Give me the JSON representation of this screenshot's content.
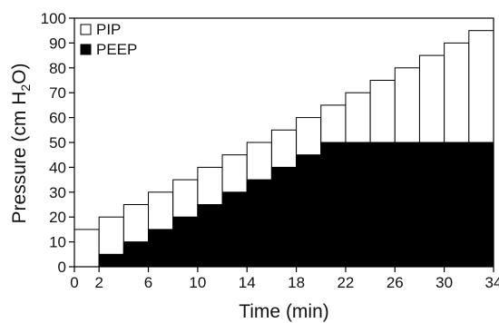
{
  "chart_data": {
    "type": "bar",
    "xlabel": "Time (min)",
    "ylabel_parts": [
      "Pressure (cm H",
      "2",
      "O)"
    ],
    "xlim": [
      0,
      34
    ],
    "ylim": [
      0,
      100
    ],
    "x_ticks": [
      0,
      2,
      6,
      10,
      14,
      18,
      22,
      26,
      30,
      34
    ],
    "y_ticks": [
      0,
      10,
      20,
      30,
      40,
      50,
      60,
      70,
      80,
      90,
      100
    ],
    "step_width": 2,
    "steps": [
      {
        "x": 0,
        "PIP": 15,
        "PEEP": 0
      },
      {
        "x": 2,
        "PIP": 20,
        "PEEP": 5
      },
      {
        "x": 4,
        "PIP": 25,
        "PEEP": 10
      },
      {
        "x": 6,
        "PIP": 30,
        "PEEP": 15
      },
      {
        "x": 8,
        "PIP": 35,
        "PEEP": 20
      },
      {
        "x": 10,
        "PIP": 40,
        "PEEP": 25
      },
      {
        "x": 12,
        "PIP": 45,
        "PEEP": 30
      },
      {
        "x": 14,
        "PIP": 50,
        "PEEP": 35
      },
      {
        "x": 16,
        "PIP": 55,
        "PEEP": 40
      },
      {
        "x": 18,
        "PIP": 60,
        "PEEP": 45
      },
      {
        "x": 20,
        "PIP": 65,
        "PEEP": 50
      },
      {
        "x": 22,
        "PIP": 70,
        "PEEP": 50
      },
      {
        "x": 24,
        "PIP": 75,
        "PEEP": 50
      },
      {
        "x": 26,
        "PIP": 80,
        "PEEP": 50
      },
      {
        "x": 28,
        "PIP": 85,
        "PEEP": 50
      },
      {
        "x": 30,
        "PIP": 90,
        "PEEP": 50
      },
      {
        "x": 32,
        "PIP": 95,
        "PEEP": 50
      }
    ],
    "legend": [
      {
        "label": "PIP",
        "color": "#ffffff"
      },
      {
        "label": "PEEP",
        "color": "#000000"
      }
    ],
    "legend_position": "top-left",
    "grid": false
  }
}
